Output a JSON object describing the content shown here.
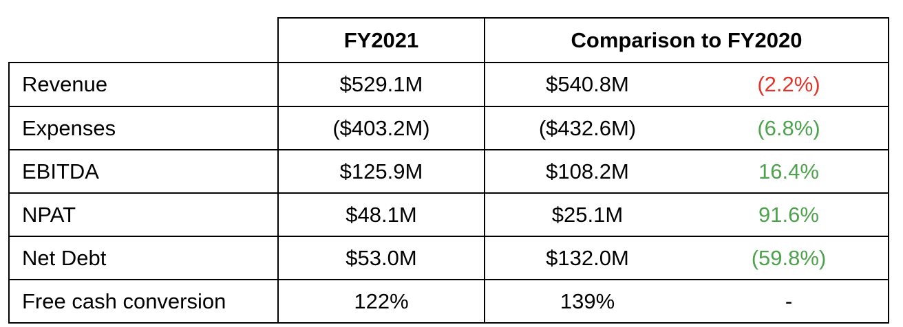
{
  "header": {
    "col_fy2021": "FY2021",
    "col_comparison": "Comparison to FY2020"
  },
  "colors": {
    "negative": "#e0352b",
    "positive": "#4ea24e",
    "neutral": "#000000"
  },
  "rows": [
    {
      "label": "Revenue",
      "fy2021": "$529.1M",
      "fy2020": "$540.8M",
      "change": "(2.2%)",
      "change_color": "#e0352b"
    },
    {
      "label": "Expenses",
      "fy2021": "($403.2M)",
      "fy2020": "($432.6M)",
      "change": "(6.8%)",
      "change_color": "#4ea24e"
    },
    {
      "label": "EBITDA",
      "fy2021": "$125.9M",
      "fy2020": "$108.2M",
      "change": "16.4%",
      "change_color": "#4ea24e"
    },
    {
      "label": "NPAT",
      "fy2021": "$48.1M",
      "fy2020": "$25.1M",
      "change": "91.6%",
      "change_color": "#4ea24e"
    },
    {
      "label": "Net Debt",
      "fy2021": "$53.0M",
      "fy2020": "$132.0M",
      "change": "(59.8%)",
      "change_color": "#4ea24e"
    },
    {
      "label": "Free cash conversion",
      "fy2021": "122%",
      "fy2020": "139%",
      "change": "-",
      "change_color": "#000000"
    }
  ]
}
